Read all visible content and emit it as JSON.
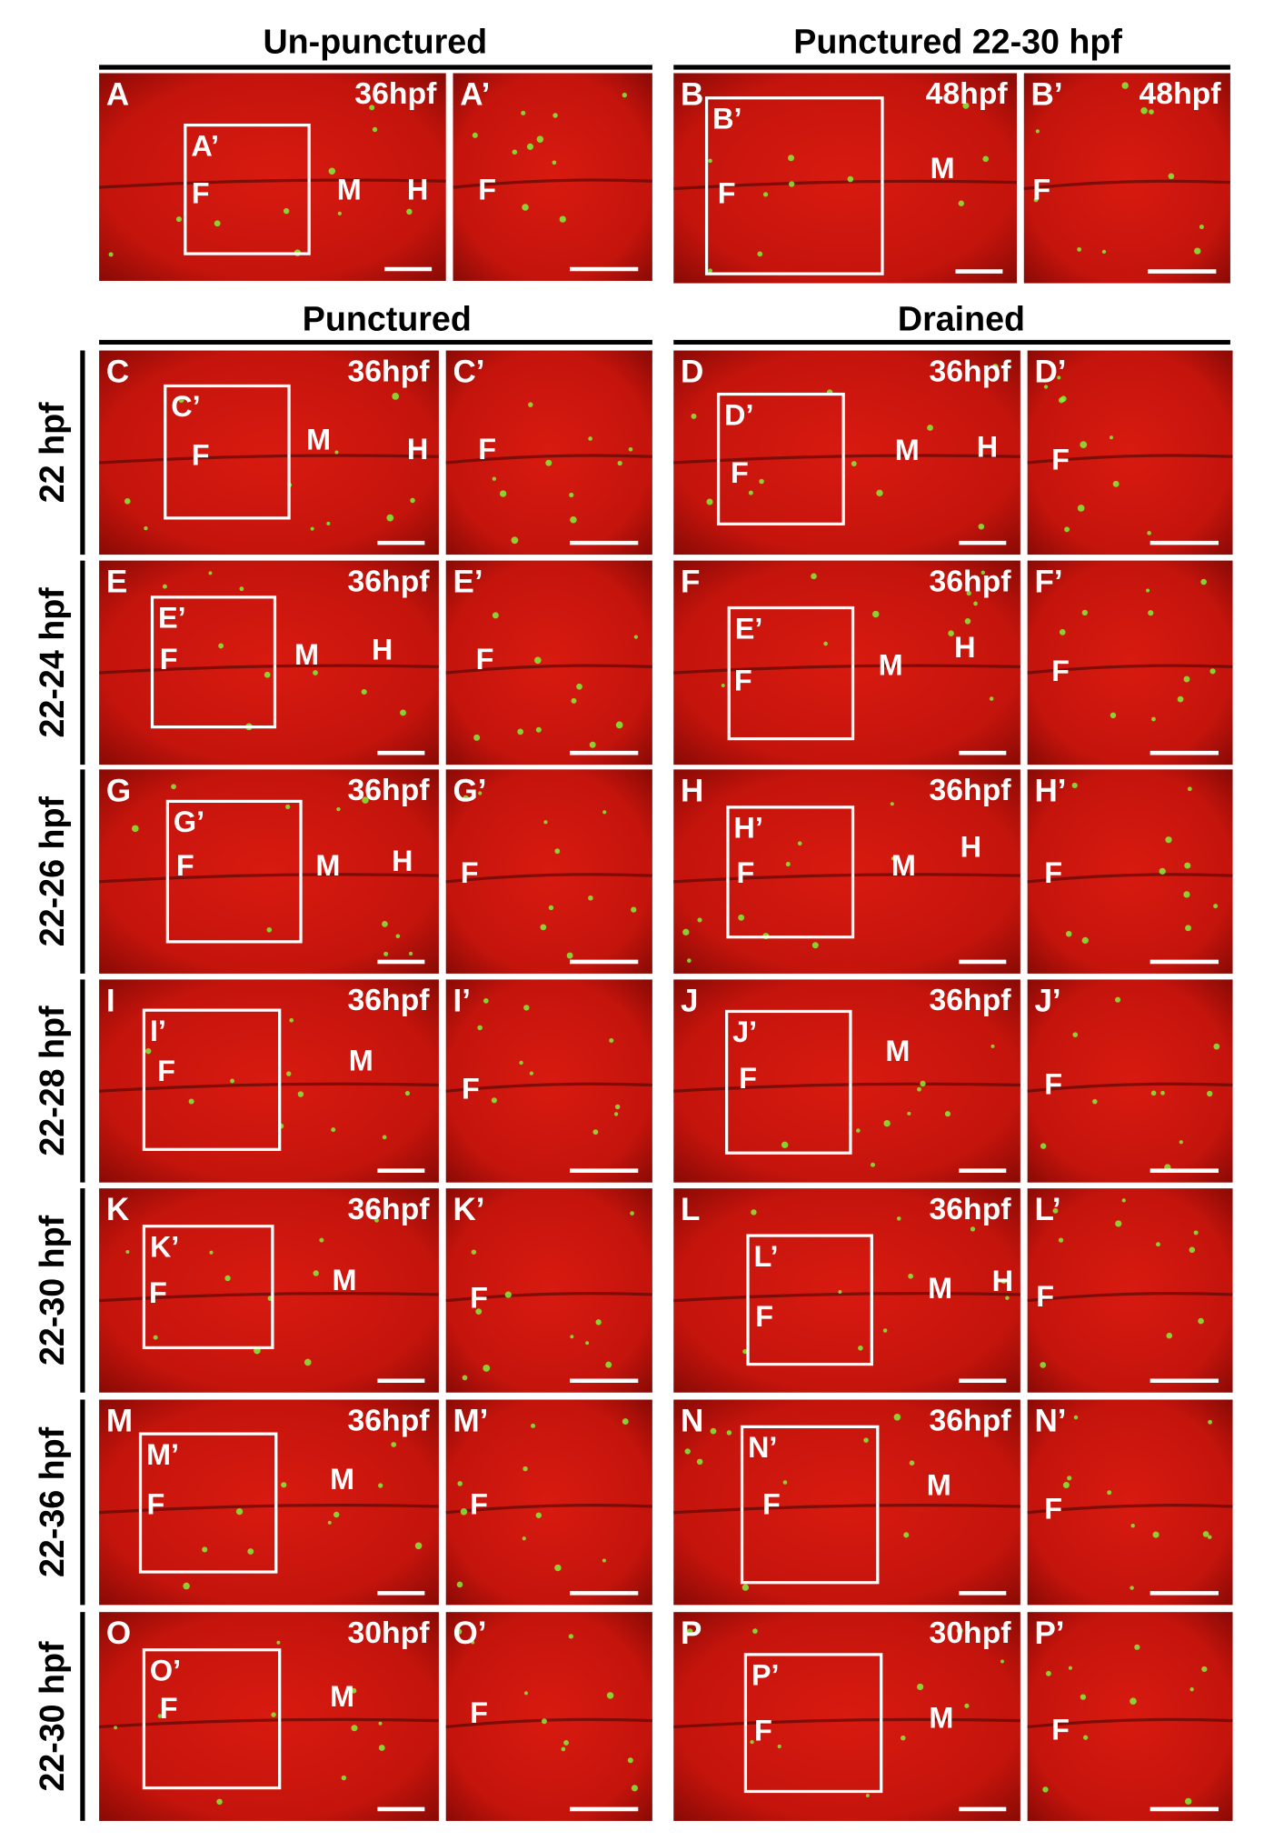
{
  "column_headers": [
    "Un-punctured",
    "Punctured 22-30 hpf",
    "Punctured",
    "Drained"
  ],
  "row_labels": [
    "22 hpf",
    "22-24 hpf",
    "22-26 hpf",
    "22-28 hpf",
    "22-30 hpf",
    "22-36 hpf",
    "22-30 hpf"
  ],
  "panels": [
    {
      "label": "A",
      "stage": "36hpf",
      "inset_label": "A’",
      "regions": [
        "F",
        "M",
        "H"
      ]
    },
    {
      "label": "A’",
      "regions": [
        "F"
      ]
    },
    {
      "label": "B",
      "stage": "48hpf",
      "inset_label": "B’",
      "regions": [
        "F",
        "M"
      ]
    },
    {
      "label": "B’",
      "stage": "48hpf",
      "regions": [
        "F"
      ]
    },
    {
      "label": "C",
      "stage": "36hpf",
      "inset_label": "C’",
      "regions": [
        "F",
        "M",
        "H"
      ]
    },
    {
      "label": "C’",
      "regions": [
        "F"
      ]
    },
    {
      "label": "D",
      "stage": "36hpf",
      "inset_label": "D’",
      "regions": [
        "F",
        "M",
        "H"
      ]
    },
    {
      "label": "D’",
      "regions": [
        "F"
      ]
    },
    {
      "label": "E",
      "stage": "36hpf",
      "inset_label": "E’",
      "regions": [
        "F",
        "M",
        "H"
      ]
    },
    {
      "label": "E’",
      "regions": [
        "F"
      ]
    },
    {
      "label": "F",
      "stage": "36hpf",
      "inset_label": "E’",
      "regions": [
        "F",
        "M",
        "H"
      ]
    },
    {
      "label": "F’",
      "regions": [
        "F"
      ]
    },
    {
      "label": "G",
      "stage": "36hpf",
      "inset_label": "G’",
      "regions": [
        "F",
        "M",
        "H"
      ]
    },
    {
      "label": "G’",
      "regions": [
        "F"
      ]
    },
    {
      "label": "H",
      "stage": "36hpf",
      "inset_label": "H’",
      "regions": [
        "F",
        "M",
        "H"
      ]
    },
    {
      "label": "H’",
      "regions": [
        "F"
      ]
    },
    {
      "label": "I",
      "stage": "36hpf",
      "inset_label": "I’",
      "regions": [
        "F",
        "M"
      ]
    },
    {
      "label": "I’",
      "regions": [
        "F"
      ]
    },
    {
      "label": "J",
      "stage": "36hpf",
      "inset_label": "J’",
      "regions": [
        "F",
        "M"
      ]
    },
    {
      "label": "J’",
      "regions": [
        "F"
      ]
    },
    {
      "label": "K",
      "stage": "36hpf",
      "inset_label": "K’",
      "regions": [
        "F",
        "M"
      ]
    },
    {
      "label": "K’",
      "regions": [
        "F"
      ]
    },
    {
      "label": "L",
      "stage": "36hpf",
      "inset_label": "L’",
      "regions": [
        "F",
        "M",
        "H"
      ]
    },
    {
      "label": "L’",
      "regions": [
        "F"
      ]
    },
    {
      "label": "M",
      "stage": "36hpf",
      "inset_label": "M’",
      "regions": [
        "F",
        "M"
      ]
    },
    {
      "label": "M’",
      "regions": [
        "F"
      ]
    },
    {
      "label": "N",
      "stage": "36hpf",
      "inset_label": "N’",
      "regions": [
        "F",
        "M"
      ]
    },
    {
      "label": "N’",
      "regions": [
        "F"
      ]
    },
    {
      "label": "O",
      "stage": "30hpf",
      "inset_label": "O’",
      "regions": [
        "F",
        "M"
      ]
    },
    {
      "label": "O’",
      "regions": [
        "F"
      ]
    },
    {
      "label": "P",
      "stage": "30hpf",
      "inset_label": "P’",
      "regions": [
        "F",
        "M"
      ]
    },
    {
      "label": "P’",
      "regions": [
        "F"
      ]
    }
  ]
}
